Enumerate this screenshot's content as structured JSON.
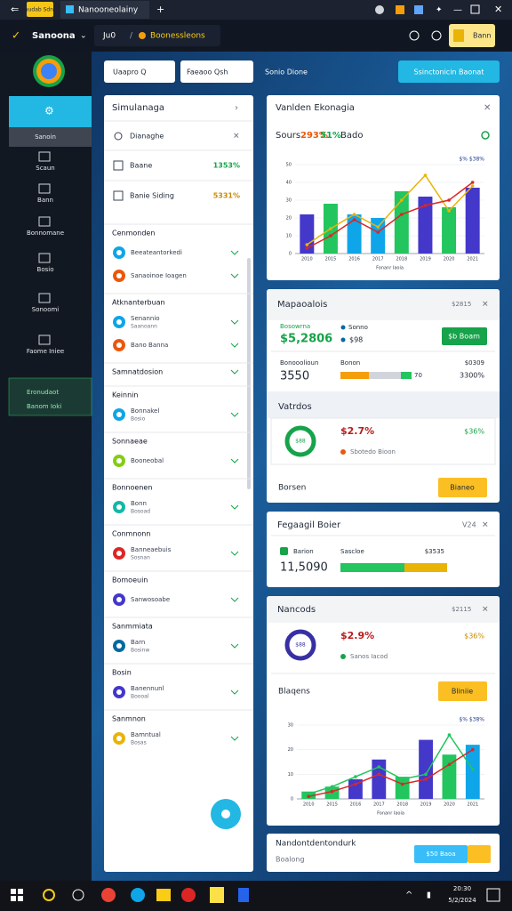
{
  "browser": {
    "badge": "Iaudab Sdnn",
    "tab": "Nanooneolainy"
  },
  "toolbar": {
    "app": "Sanoona",
    "path": "Ju0",
    "crumb": "Boonessleons",
    "button": "Bann"
  },
  "sidebar": {
    "items": [
      "Sanoin",
      "Scaun",
      "Bann",
      "Bonnomane",
      "Bosio",
      "Sonoomi",
      "Faome Iniee"
    ],
    "active_bottom": [
      "Eronudaot",
      "Banom Ioki"
    ]
  },
  "filters": {
    "input1": "Uaapro Q",
    "input2": "Faeaoo Qsh",
    "label": "Sonio Dione",
    "button": "Ssinctonicin Baonat"
  },
  "left_panel": {
    "title": "Simulanaga",
    "search": "Dianaghe",
    "rows": [
      {
        "label": "Baane",
        "value": "1353%",
        "color": "#16a34a"
      },
      {
        "label": "Banie Siding",
        "value": "5331%",
        "color": "#ca8a04"
      }
    ],
    "groups": [
      {
        "title": "Cenmonden",
        "items": [
          {
            "text": "Beeateantorkedi",
            "color": "#0ea5e9"
          },
          {
            "text": "Sanaoinoe Ioagen",
            "color": "#ea580c"
          }
        ]
      },
      {
        "title": "Atknanterbuan",
        "items": [
          {
            "text": "Senannio",
            "sub": "Saanoann",
            "color": "#0ea5e9"
          },
          {
            "text": "Bano Banna",
            "color": "#ea580c"
          }
        ]
      },
      {
        "title": "Samnatdosion",
        "items": []
      },
      {
        "title": "Keinnin",
        "items": [
          {
            "text": "Bonnakel",
            "sub": "Bosio",
            "color": "#0ea5e9"
          }
        ]
      },
      {
        "title": "Sonnaeae",
        "items": [
          {
            "text": "Booneobal",
            "color": "#84cc16"
          }
        ]
      },
      {
        "title": "Bonnoenen",
        "items": [
          {
            "text": "Bonn",
            "sub": "Bosoad",
            "color": "#14b8a6"
          }
        ]
      },
      {
        "title": "Conmnonn",
        "items": [
          {
            "text": "Banneaebuis",
            "sub": "Sosnan",
            "color": "#dc2626"
          }
        ]
      },
      {
        "title": "Bomoeuin",
        "items": [
          {
            "text": "Sanwosoabe",
            "color": "#4338ca"
          }
        ]
      },
      {
        "title": "Sanmmiata",
        "items": [
          {
            "text": "Barn",
            "sub": "Bosinw",
            "color": "#0369a1"
          }
        ]
      },
      {
        "title": "Bosin",
        "items": [
          {
            "text": "Banennunl",
            "sub": "Boooal",
            "color": "#4338ca"
          }
        ]
      },
      {
        "title": "Sanmnon",
        "items": [
          {
            "text": "Bamntual",
            "sub": "Bosas",
            "color": "#eab308"
          }
        ]
      }
    ]
  },
  "panel1": {
    "title": "Vanlden Ekonagia",
    "stats": [
      "Sours",
      "293%",
      "51%",
      "Bado"
    ],
    "chart": {
      "legend": "$% $38%",
      "xlabel": "Fonanr Iaoia",
      "ylim": [
        0,
        50
      ],
      "yticks": [
        0,
        10,
        20,
        30,
        40,
        50
      ],
      "categories": [
        "2010",
        "2015",
        "2016",
        "2017",
        "2018",
        "2019",
        "2020",
        "2021"
      ],
      "bars": {
        "colors": [
          "#4338ca",
          "#22c55e",
          "#0ea5e9",
          "#0ea5e9",
          "#22c55e",
          "#4338ca",
          "#22c55e",
          "#4338ca"
        ],
        "values": [
          22,
          28,
          22,
          20,
          35,
          32,
          26,
          37
        ]
      },
      "lines": [
        {
          "color": "#eab308",
          "values": [
            5,
            14,
            22,
            15,
            30,
            44,
            24,
            38
          ]
        },
        {
          "color": "#dc2626",
          "values": [
            3,
            10,
            19,
            12,
            22,
            27,
            30,
            40
          ]
        }
      ]
    }
  },
  "panel2": {
    "title": "Mapaoalois",
    "tag": "$2815",
    "label1": "Bosowrna",
    "big1": "$5,2806",
    "label2": "Sonno",
    "small2": "$98",
    "button": "$b Boam",
    "row2": {
      "label": "Bonooolioun",
      "big": "3550",
      "label2": "Bonon",
      "count": "70",
      "right1": "$0309",
      "right2": "3300%",
      "segments": {
        "colors": [
          "#f59e0b",
          "#d1d5db",
          "#22c55e"
        ],
        "values": [
          40,
          45,
          15
        ]
      }
    },
    "section": "Vatrdos",
    "donut": "$88",
    "pct_red": "$2.7%",
    "pct_green": "$36%",
    "legend": "Sbotedo Bioon",
    "footer": "Borsen",
    "footer_button": "Bianeo"
  },
  "panel3": {
    "title": "Fegaagil Boier",
    "tag": "V24",
    "label1": "Barion",
    "label2": "Sascloe",
    "right": "$3535",
    "big": "11,5090",
    "segments": {
      "colors": [
        "#22c55e",
        "#eab308"
      ],
      "values": [
        60,
        40
      ]
    }
  },
  "panel4": {
    "title": "Nancods",
    "tag": "$2115",
    "donut": "$88",
    "pct_red": "$2.9%",
    "pct_yellow": "$36%",
    "legend": "Sanos Iacod",
    "label": "Blaqens",
    "button": "Bliniie",
    "chart": {
      "legend": "$% $38%",
      "xlabel": "Fonanr Iaoia",
      "ylim": [
        0,
        30
      ],
      "yticks": [
        0,
        10,
        20,
        30
      ],
      "categories": [
        "2010",
        "2015",
        "2016",
        "2017",
        "2018",
        "2019",
        "2020",
        "2021"
      ],
      "bars": {
        "colors": [
          "#22c55e",
          "#22c55e",
          "#4338ca",
          "#4338ca",
          "#22c55e",
          "#4338ca",
          "#22c55e",
          "#0ea5e9"
        ],
        "values": [
          3,
          5,
          8,
          16,
          9,
          24,
          18,
          22
        ]
      },
      "lines": [
        {
          "color": "#22c55e",
          "values": [
            2,
            5,
            9,
            13,
            8,
            10,
            26,
            12
          ]
        },
        {
          "color": "#dc2626",
          "values": [
            1,
            3,
            6,
            10,
            6,
            8,
            14,
            20
          ]
        }
      ]
    }
  },
  "panel5": {
    "title": "Nandontdentondurk",
    "subtitle": "Boalong",
    "button1": "$50 Baoa"
  },
  "taskbar": {
    "time": "20:30",
    "date": "5/2/2024"
  }
}
